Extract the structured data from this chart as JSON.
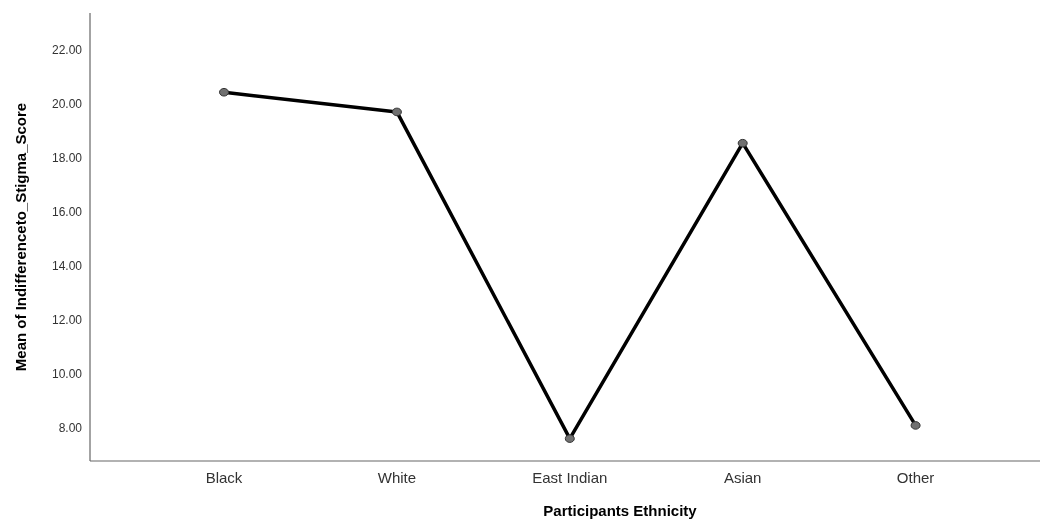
{
  "chart_data": {
    "type": "line",
    "xlabel": "Participants Ethnicity",
    "ylabel": "Mean of Indifferenceto_Stigma_Score",
    "categories": [
      "Black",
      "White",
      "East Indian",
      "Asian",
      "Other"
    ],
    "series": [
      {
        "color": "#000000",
        "values": [
          20.43,
          19.7,
          7.58,
          18.54,
          8.07
        ]
      }
    ],
    "ylim": [
      6.75,
      23.37
    ],
    "yticks": [
      {
        "value": 8,
        "label": "8.00"
      },
      {
        "value": 10,
        "label": "10.00"
      },
      {
        "value": 12,
        "label": "12.00"
      },
      {
        "value": 14,
        "label": "14.00"
      },
      {
        "value": 16,
        "label": "16.00"
      },
      {
        "value": 18,
        "label": "18.00"
      },
      {
        "value": 20,
        "label": "20.00"
      },
      {
        "value": 22,
        "label": "22.00"
      }
    ],
    "marker": "circle",
    "line_style": "solid",
    "grid": false
  }
}
